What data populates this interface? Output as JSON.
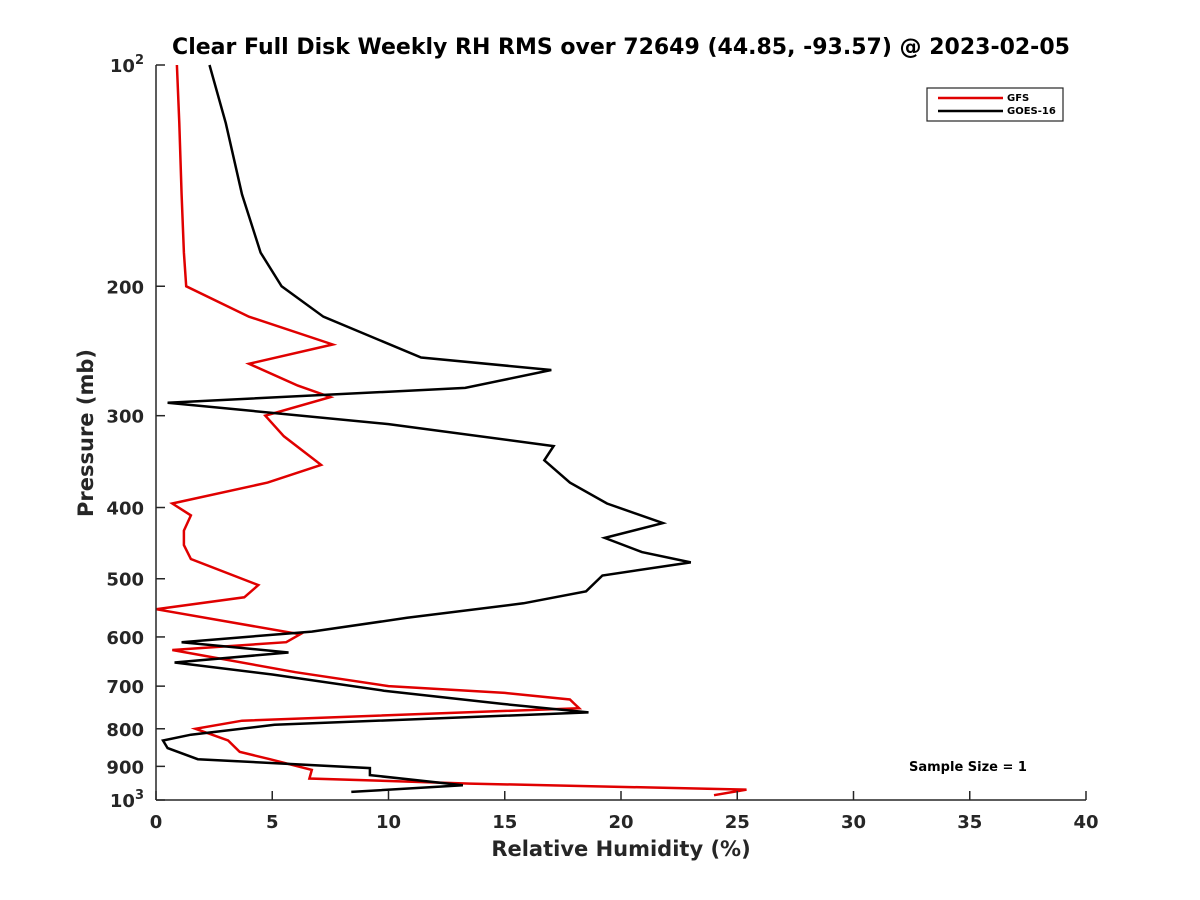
{
  "chart_data": {
    "type": "line",
    "title": "Clear Full Disk Weekly RH RMS over 72649 (44.85, -93.57) @ 2023-02-05",
    "xlabel": "Relative Humidity (%)",
    "ylabel": "Pressure (mb)",
    "xlim": [
      0,
      40
    ],
    "ylim": [
      100,
      1000
    ],
    "yscale": "log",
    "y_reversed": true,
    "x_ticks": [
      "0",
      "5",
      "10",
      "15",
      "20",
      "25",
      "30",
      "35",
      "40"
    ],
    "y_ticks": [
      {
        "value": 200,
        "label": "200"
      },
      {
        "value": 300,
        "label": "300"
      },
      {
        "value": 400,
        "label": "400"
      },
      {
        "value": 500,
        "label": "500"
      },
      {
        "value": 600,
        "label": "600"
      },
      {
        "value": 700,
        "label": "700"
      },
      {
        "value": 800,
        "label": "800"
      },
      {
        "value": 900,
        "label": "900"
      }
    ],
    "y_end_ticks": {
      "top": {
        "value": 100,
        "base": "10",
        "exp": "2"
      },
      "bottom": {
        "value": 1000,
        "base": "10",
        "exp": "3"
      }
    },
    "legend_position": "top-right",
    "grid": false,
    "annotation": "Sample Size = 1",
    "series": [
      {
        "name": "GFS",
        "color": "#e00000",
        "x": [
          0.9,
          1.0,
          1.1,
          1.2,
          1.3,
          4.0,
          7.6,
          4.0,
          6.1,
          7.5,
          4.7,
          5.5,
          7.1,
          4.8,
          0.7,
          1.5,
          1.2,
          1.2,
          1.5,
          4.4,
          3.8,
          0.0,
          6.2,
          5.6,
          0.7,
          6.0,
          10.0,
          15.0,
          17.8,
          18.0,
          18.2,
          3.7,
          1.7,
          3.1,
          3.6,
          4.9,
          6.7,
          6.6,
          13.5,
          25.4,
          24.0
        ],
        "y": [
          100,
          120,
          150,
          180,
          200,
          220,
          240,
          255,
          273,
          283,
          300,
          320,
          350,
          370,
          395,
          410,
          430,
          450,
          470,
          510,
          530,
          550,
          595,
          610,
          625,
          670,
          700,
          715,
          730,
          740,
          750,
          780,
          800,
          830,
          860,
          880,
          910,
          935,
          950,
          968,
          985
        ]
      },
      {
        "name": "GOES-16",
        "color": "#000000",
        "x": [
          2.3,
          3.0,
          3.7,
          4.5,
          5.4,
          7.2,
          11.4,
          17.0,
          13.3,
          0.5,
          10.0,
          17.1,
          16.7,
          17.8,
          19.4,
          21.8,
          19.3,
          20.9,
          23.0,
          19.2,
          18.5,
          15.8,
          10.8,
          6.7,
          1.1,
          5.7,
          0.8,
          5.0,
          9.8,
          14.9,
          18.6,
          5.1,
          1.5,
          0.3,
          0.5,
          1.8,
          9.2,
          9.2,
          13.2,
          8.4
        ],
        "y": [
          100,
          120,
          150,
          180,
          200,
          220,
          250,
          260,
          275,
          288,
          308,
          330,
          345,
          370,
          395,
          420,
          440,
          460,
          475,
          495,
          520,
          540,
          565,
          590,
          610,
          630,
          650,
          675,
          710,
          740,
          760,
          790,
          815,
          830,
          850,
          880,
          905,
          925,
          955,
          975
        ]
      }
    ]
  }
}
